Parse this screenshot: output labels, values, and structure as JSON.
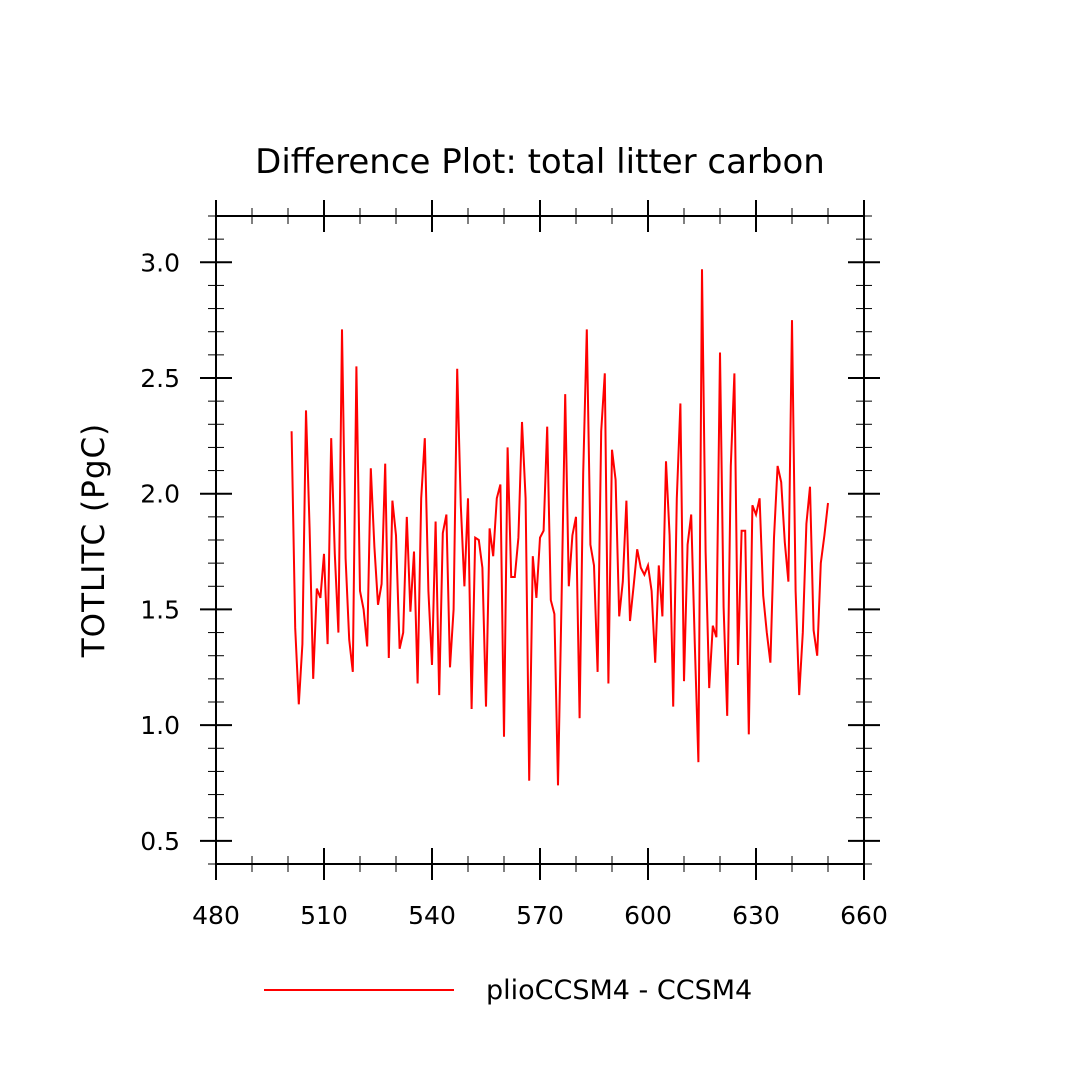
{
  "chart_data": {
    "type": "line",
    "title": "Difference Plot: total litter carbon",
    "xlabel": "",
    "ylabel": "TOTLITC  (PgC)",
    "xlim": [
      480,
      660
    ],
    "ylim": [
      0.4,
      3.2
    ],
    "x_ticks": [
      480,
      510,
      540,
      570,
      600,
      630,
      660
    ],
    "x_tick_labels": [
      "480",
      "510",
      "540",
      "570",
      "600",
      "630",
      "660"
    ],
    "y_ticks": [
      0.5,
      1.0,
      1.5,
      2.0,
      2.5,
      3.0
    ],
    "y_tick_labels": [
      "0.5",
      "1.0",
      "1.5",
      "2.0",
      "2.5",
      "3.0"
    ],
    "x_minor_step": 10,
    "y_minor_step": 0.1,
    "grid": false,
    "legend_position": "bottom-center",
    "series": [
      {
        "name": "plioCCSM4 - CCSM4",
        "color": "#ff0000",
        "x_start": 501,
        "x_step": 1,
        "values": [
          2.27,
          1.42,
          1.09,
          1.35,
          2.36,
          1.85,
          1.2,
          1.59,
          1.55,
          1.74,
          1.35,
          2.24,
          1.74,
          1.4,
          2.71,
          1.72,
          1.37,
          1.23,
          2.55,
          1.58,
          1.5,
          1.34,
          2.11,
          1.77,
          1.52,
          1.61,
          2.13,
          1.29,
          1.97,
          1.82,
          1.33,
          1.4,
          1.9,
          1.49,
          1.75,
          1.18,
          1.98,
          2.24,
          1.58,
          1.26,
          1.88,
          1.13,
          1.83,
          1.91,
          1.25,
          1.5,
          2.54,
          1.95,
          1.6,
          1.98,
          1.07,
          1.81,
          1.8,
          1.68,
          1.08,
          1.85,
          1.73,
          1.98,
          2.04,
          0.95,
          2.2,
          1.64,
          1.64,
          1.81,
          2.31,
          1.98,
          0.76,
          1.73,
          1.55,
          1.81,
          1.84,
          2.29,
          1.54,
          1.48,
          0.74,
          1.55,
          2.43,
          1.6,
          1.82,
          1.9,
          1.03,
          2.09,
          2.71,
          1.78,
          1.69,
          1.23,
          2.27,
          2.52,
          1.18,
          2.19,
          2.06,
          1.47,
          1.62,
          1.97,
          1.45,
          1.6,
          1.76,
          1.68,
          1.65,
          1.69,
          1.58,
          1.27,
          1.69,
          1.47,
          2.14,
          1.82,
          1.08,
          1.98,
          2.39,
          1.19,
          1.78,
          1.91,
          1.35,
          0.84,
          2.97,
          1.75,
          1.16,
          1.43,
          1.38,
          2.61,
          1.51,
          1.04,
          2.12,
          2.52,
          1.26,
          1.84,
          1.84,
          0.96,
          1.95,
          1.91,
          1.98,
          1.56,
          1.4,
          1.27,
          1.81,
          2.12,
          2.05,
          1.79,
          1.62,
          2.75,
          1.58,
          1.13,
          1.4,
          1.87,
          2.03,
          1.41,
          1.3,
          1.7,
          1.82,
          1.96
        ]
      }
    ]
  }
}
